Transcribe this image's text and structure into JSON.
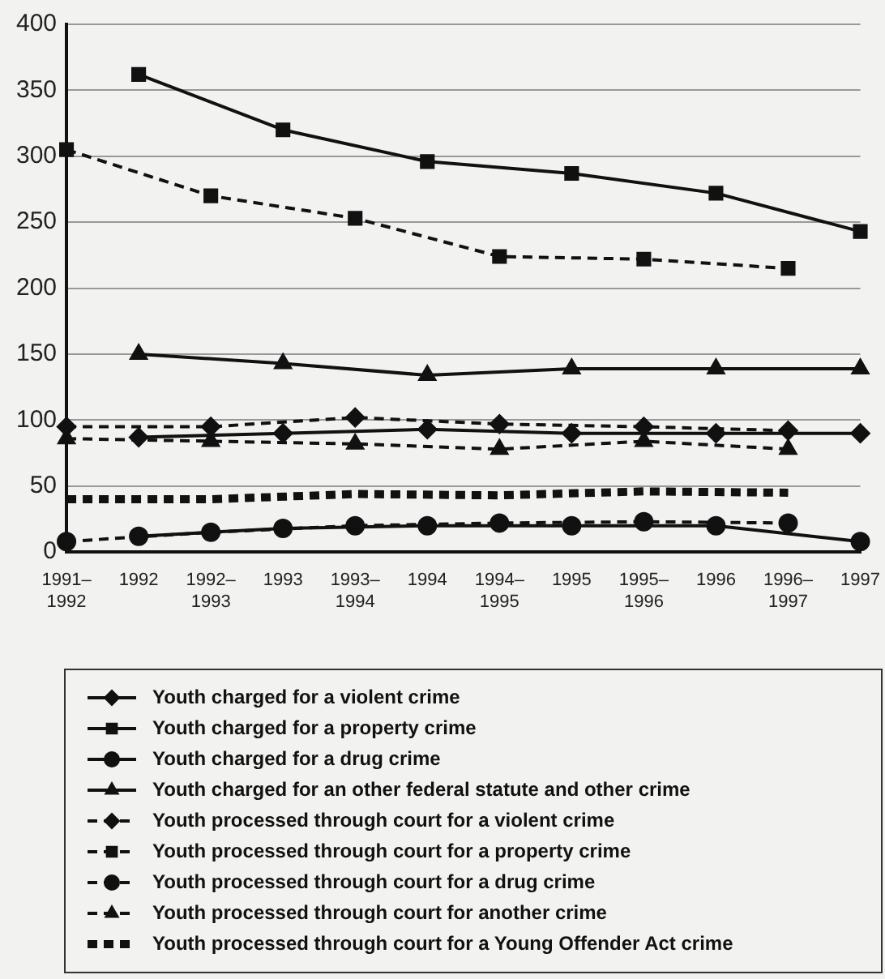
{
  "chart_data": {
    "type": "line",
    "categories": [
      "1991–1992",
      "1992",
      "1992–1993",
      "1993",
      "1993–1994",
      "1994",
      "1994–1995",
      "1995",
      "1995–1996",
      "1996",
      "1996–1997",
      "1997"
    ],
    "ylim": [
      0,
      400
    ],
    "yticks": [
      0,
      50,
      100,
      150,
      200,
      250,
      300,
      350,
      400
    ],
    "grid": "y",
    "legend": "bottom",
    "series": [
      {
        "name": "Youth charged for a violent crime",
        "color": "#111111",
        "marker": "diamond",
        "line_style": "solid",
        "values": [
          null,
          87,
          null,
          90,
          null,
          93,
          null,
          90,
          null,
          90,
          null,
          90
        ]
      },
      {
        "name": "Youth charged for a property crime",
        "color": "#111111",
        "marker": "square",
        "line_style": "solid",
        "values": [
          null,
          362,
          null,
          320,
          null,
          296,
          null,
          287,
          null,
          272,
          null,
          243
        ]
      },
      {
        "name": "Youth charged for a drug crime",
        "color": "#111111",
        "marker": "circle",
        "line_style": "solid",
        "values": [
          null,
          12,
          null,
          18,
          null,
          20,
          null,
          20,
          null,
          20,
          null,
          8
        ]
      },
      {
        "name": "Youth charged for an other federal statute and other crime",
        "color": "#111111",
        "marker": "triangle",
        "line_style": "solid",
        "values": [
          null,
          150,
          null,
          143,
          null,
          134,
          null,
          139,
          null,
          139,
          null,
          139
        ]
      },
      {
        "name": "Youth processed through court for a violent crime",
        "color": "#111111",
        "marker": "diamond",
        "line_style": "dashed",
        "values": [
          95,
          null,
          95,
          null,
          102,
          null,
          97,
          null,
          95,
          null,
          92,
          null
        ]
      },
      {
        "name": "Youth processed through court for a property crime",
        "color": "#111111",
        "marker": "square",
        "line_style": "dashed",
        "values": [
          305,
          null,
          270,
          null,
          253,
          null,
          224,
          null,
          222,
          null,
          215,
          null
        ]
      },
      {
        "name": "Youth processed through court for a drug crime",
        "color": "#111111",
        "marker": "circle",
        "line_style": "dashed",
        "values": [
          8,
          null,
          15,
          null,
          20,
          null,
          22,
          null,
          23,
          null,
          22,
          null
        ]
      },
      {
        "name": "Youth processed through court for another crime",
        "color": "#111111",
        "marker": "triangle",
        "line_style": "dashed",
        "values": [
          86,
          null,
          84,
          null,
          82,
          null,
          78,
          null,
          84,
          null,
          78,
          null
        ]
      },
      {
        "name": "Youth processed through court for a Young Offender Act crime",
        "color": "#111111",
        "marker": "none",
        "line_style": "dashed",
        "values": [
          40,
          null,
          40,
          null,
          44,
          null,
          43,
          null,
          46,
          null,
          45,
          null
        ]
      }
    ]
  }
}
